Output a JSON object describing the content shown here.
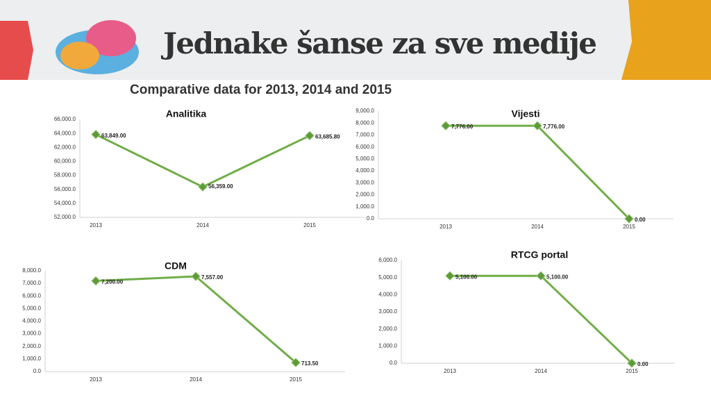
{
  "header": {
    "banner": "Jednake šanse za sve medije",
    "title": "Comparative data for 2013, 2014 and 2015"
  },
  "chart_data": [
    {
      "type": "line",
      "title": "Analitika",
      "categories": [
        "2013",
        "2014",
        "2015"
      ],
      "values": [
        63849,
        56359,
        63685.8
      ],
      "value_labels": [
        "63,849.00",
        "56,359.00",
        "63,685.80"
      ],
      "color": "#70ad47",
      "marker_color": "#5f9a3a",
      "ylim": [
        52000,
        66000
      ],
      "yticks": [
        {
          "value": 52000,
          "label": "52,000.0"
        },
        {
          "value": 54000,
          "label": "54,000.0"
        },
        {
          "value": 56000,
          "label": "56,000.0"
        },
        {
          "value": 58000,
          "label": "58,000.0"
        },
        {
          "value": 60000,
          "label": "60,000.0"
        },
        {
          "value": 62000,
          "label": "62,000.0"
        },
        {
          "value": 64000,
          "label": "64,000.0"
        },
        {
          "value": 66000,
          "label": "66,000.0"
        }
      ]
    },
    {
      "type": "line",
      "title": "Vijesti",
      "categories": [
        "2013",
        "2014",
        "2015"
      ],
      "values": [
        7776,
        7776,
        0
      ],
      "value_labels": [
        "7,776.00",
        "7,776.00",
        "0.00"
      ],
      "color": "#70ad47",
      "marker_color": "#5f9a3a",
      "ylim": [
        0,
        9000
      ],
      "yticks": [
        {
          "value": 0,
          "label": "0.0"
        },
        {
          "value": 1000,
          "label": "1,000.0"
        },
        {
          "value": 2000,
          "label": "2,000.0"
        },
        {
          "value": 3000,
          "label": "3,000.0"
        },
        {
          "value": 4000,
          "label": "4,000.0"
        },
        {
          "value": 5000,
          "label": "5,000.0"
        },
        {
          "value": 6000,
          "label": "6,000.0"
        },
        {
          "value": 7000,
          "label": "7,000.0"
        },
        {
          "value": 8000,
          "label": "8,000.0"
        },
        {
          "value": 9000,
          "label": "9,000.0"
        }
      ]
    },
    {
      "type": "line",
      "title": "CDM",
      "categories": [
        "2013",
        "2014",
        "2015"
      ],
      "values": [
        7200,
        7557,
        713.5
      ],
      "value_labels": [
        "7,200.00",
        "7,557.00",
        "713.50"
      ],
      "color": "#70ad47",
      "marker_color": "#5f9a3a",
      "ylim": [
        0,
        8000
      ],
      "yticks": [
        {
          "value": 0,
          "label": "0.0"
        },
        {
          "value": 1000,
          "label": "1,000.0"
        },
        {
          "value": 2000,
          "label": "2,000.0"
        },
        {
          "value": 3000,
          "label": "3,000.0"
        },
        {
          "value": 4000,
          "label": "4,000.0"
        },
        {
          "value": 5000,
          "label": "5,000.0"
        },
        {
          "value": 6000,
          "label": "6,000.0"
        },
        {
          "value": 7000,
          "label": "7,000.0"
        },
        {
          "value": 8000,
          "label": "8,000.0"
        }
      ]
    },
    {
      "type": "line",
      "title": "RTCG portal",
      "categories": [
        "2013",
        "2014",
        "2015"
      ],
      "values": [
        5100,
        5100,
        0
      ],
      "value_labels": [
        "5,100.00",
        "5,100.00",
        "0.00"
      ],
      "color": "#70ad47",
      "marker_color": "#5f9a3a",
      "ylim": [
        0,
        6000
      ],
      "yticks": [
        {
          "value": 0,
          "label": "0.0"
        },
        {
          "value": 1000,
          "label": "1,000.0"
        },
        {
          "value": 2000,
          "label": "2,000.0"
        },
        {
          "value": 3000,
          "label": "3,000.0"
        },
        {
          "value": 4000,
          "label": "4,000.0"
        },
        {
          "value": 5000,
          "label": "5,000.0"
        },
        {
          "value": 6000,
          "label": "6,000.0"
        }
      ]
    }
  ]
}
